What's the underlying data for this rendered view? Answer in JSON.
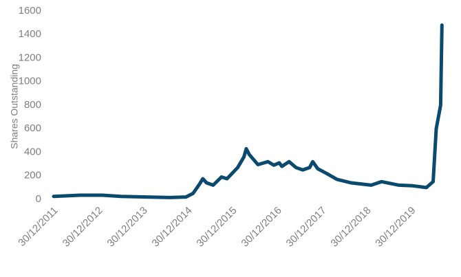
{
  "chart_data": {
    "type": "line",
    "y_label": "Shares Outstanding",
    "x": [
      "2011-12-30",
      "2012-08-01",
      "2013-02-01",
      "2013-07-01",
      "2014-08-01",
      "2014-12-15",
      "2015-02-10",
      "2015-04-05",
      "2015-05-01",
      "2015-06-01",
      "2015-07-25",
      "2015-10-01",
      "2015-11-15",
      "2016-02-10",
      "2016-04-01",
      "2016-04-20",
      "2016-05-15",
      "2016-07-25",
      "2016-10-15",
      "2016-12-01",
      "2017-01-15",
      "2017-02-05",
      "2017-04-05",
      "2017-06-01",
      "2017-07-25",
      "2017-09-20",
      "2017-10-15",
      "2017-11-25",
      "2018-02-05",
      "2018-05-01",
      "2018-08-25",
      "2019-02-05",
      "2019-05-01",
      "2019-09-20",
      "2020-01-10",
      "2020-05-01",
      "2020-06-25",
      "2020-07-20",
      "2020-08-25",
      "2020-09-05"
    ],
    "series": [
      {
        "name": "Shares Outstanding",
        "color": "#0b4a6f",
        "values": [
          25,
          35,
          35,
          25,
          15,
          20,
          50,
          130,
          175,
          140,
          120,
          190,
          175,
          270,
          360,
          430,
          380,
          295,
          320,
          290,
          310,
          280,
          320,
          270,
          250,
          270,
          320,
          260,
          220,
          170,
          140,
          120,
          150,
          120,
          115,
          100,
          150,
          600,
          800,
          1480
        ]
      }
    ],
    "xlim": [
      "2011-12-13",
      "2020-09-20"
    ],
    "xticks": [
      {
        "value": "2011-12-30",
        "label": "30/12/2011"
      },
      {
        "value": "2012-12-30",
        "label": "30/12/2012"
      },
      {
        "value": "2013-12-30",
        "label": "30/12/2013"
      },
      {
        "value": "2014-12-30",
        "label": "30/12/2014"
      },
      {
        "value": "2015-12-30",
        "label": "30/12/2015"
      },
      {
        "value": "2016-12-30",
        "label": "30/12/2016"
      },
      {
        "value": "2017-12-30",
        "label": "30/12/2017"
      },
      {
        "value": "2018-12-30",
        "label": "30/12/2018"
      },
      {
        "value": "2019-12-30",
        "label": "30/12/2019"
      }
    ],
    "ylim": [
      0,
      1600
    ],
    "yticks": [
      0,
      200,
      400,
      600,
      800,
      1000,
      1200,
      1400,
      1600
    ],
    "grid": false
  }
}
